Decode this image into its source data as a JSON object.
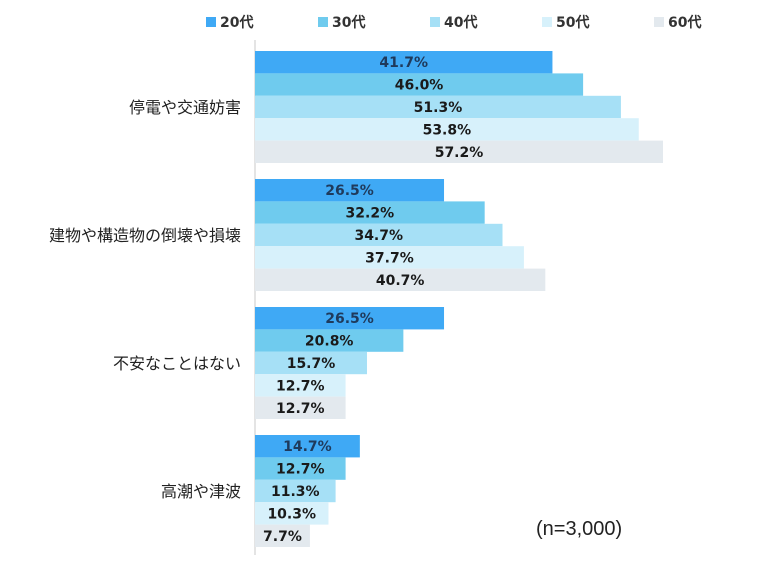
{
  "chart_data": {
    "type": "bar",
    "orientation": "horizontal",
    "categories": [
      "停電や交通妨害",
      "建物や構造物の倒壊や損壊",
      "不安なことはない",
      "高潮や津波"
    ],
    "series": [
      {
        "name": "20代",
        "color": "#3FA9F5",
        "values": [
          41.7,
          26.5,
          26.5,
          14.7
        ],
        "labels": [
          "41.7%",
          "26.5%",
          "26.5%",
          "14.7%"
        ]
      },
      {
        "name": "30代",
        "color": "#6FCBEE",
        "values": [
          46.0,
          32.2,
          20.8,
          12.7
        ],
        "labels": [
          "46.0%",
          "32.2%",
          "20.8%",
          "12.7%"
        ]
      },
      {
        "name": "40代",
        "color": "#A6E0F6",
        "values": [
          51.3,
          34.7,
          15.7,
          11.3
        ],
        "labels": [
          "51.3%",
          "34.7%",
          "15.7%",
          "11.3%"
        ]
      },
      {
        "name": "50代",
        "color": "#D7F1FB",
        "values": [
          53.8,
          37.7,
          12.7,
          10.3
        ],
        "labels": [
          "53.8%",
          "37.7%",
          "12.7%",
          "10.3%"
        ]
      },
      {
        "name": "60代",
        "color": "#E3E9EE",
        "values": [
          57.2,
          40.7,
          12.7,
          7.7
        ],
        "labels": [
          "57.2%",
          "40.7%",
          "12.7%",
          "7.7%"
        ]
      }
    ],
    "legend_position": "top",
    "annotation": "(n=3,000)",
    "xlim": [
      0,
      57.2
    ]
  }
}
